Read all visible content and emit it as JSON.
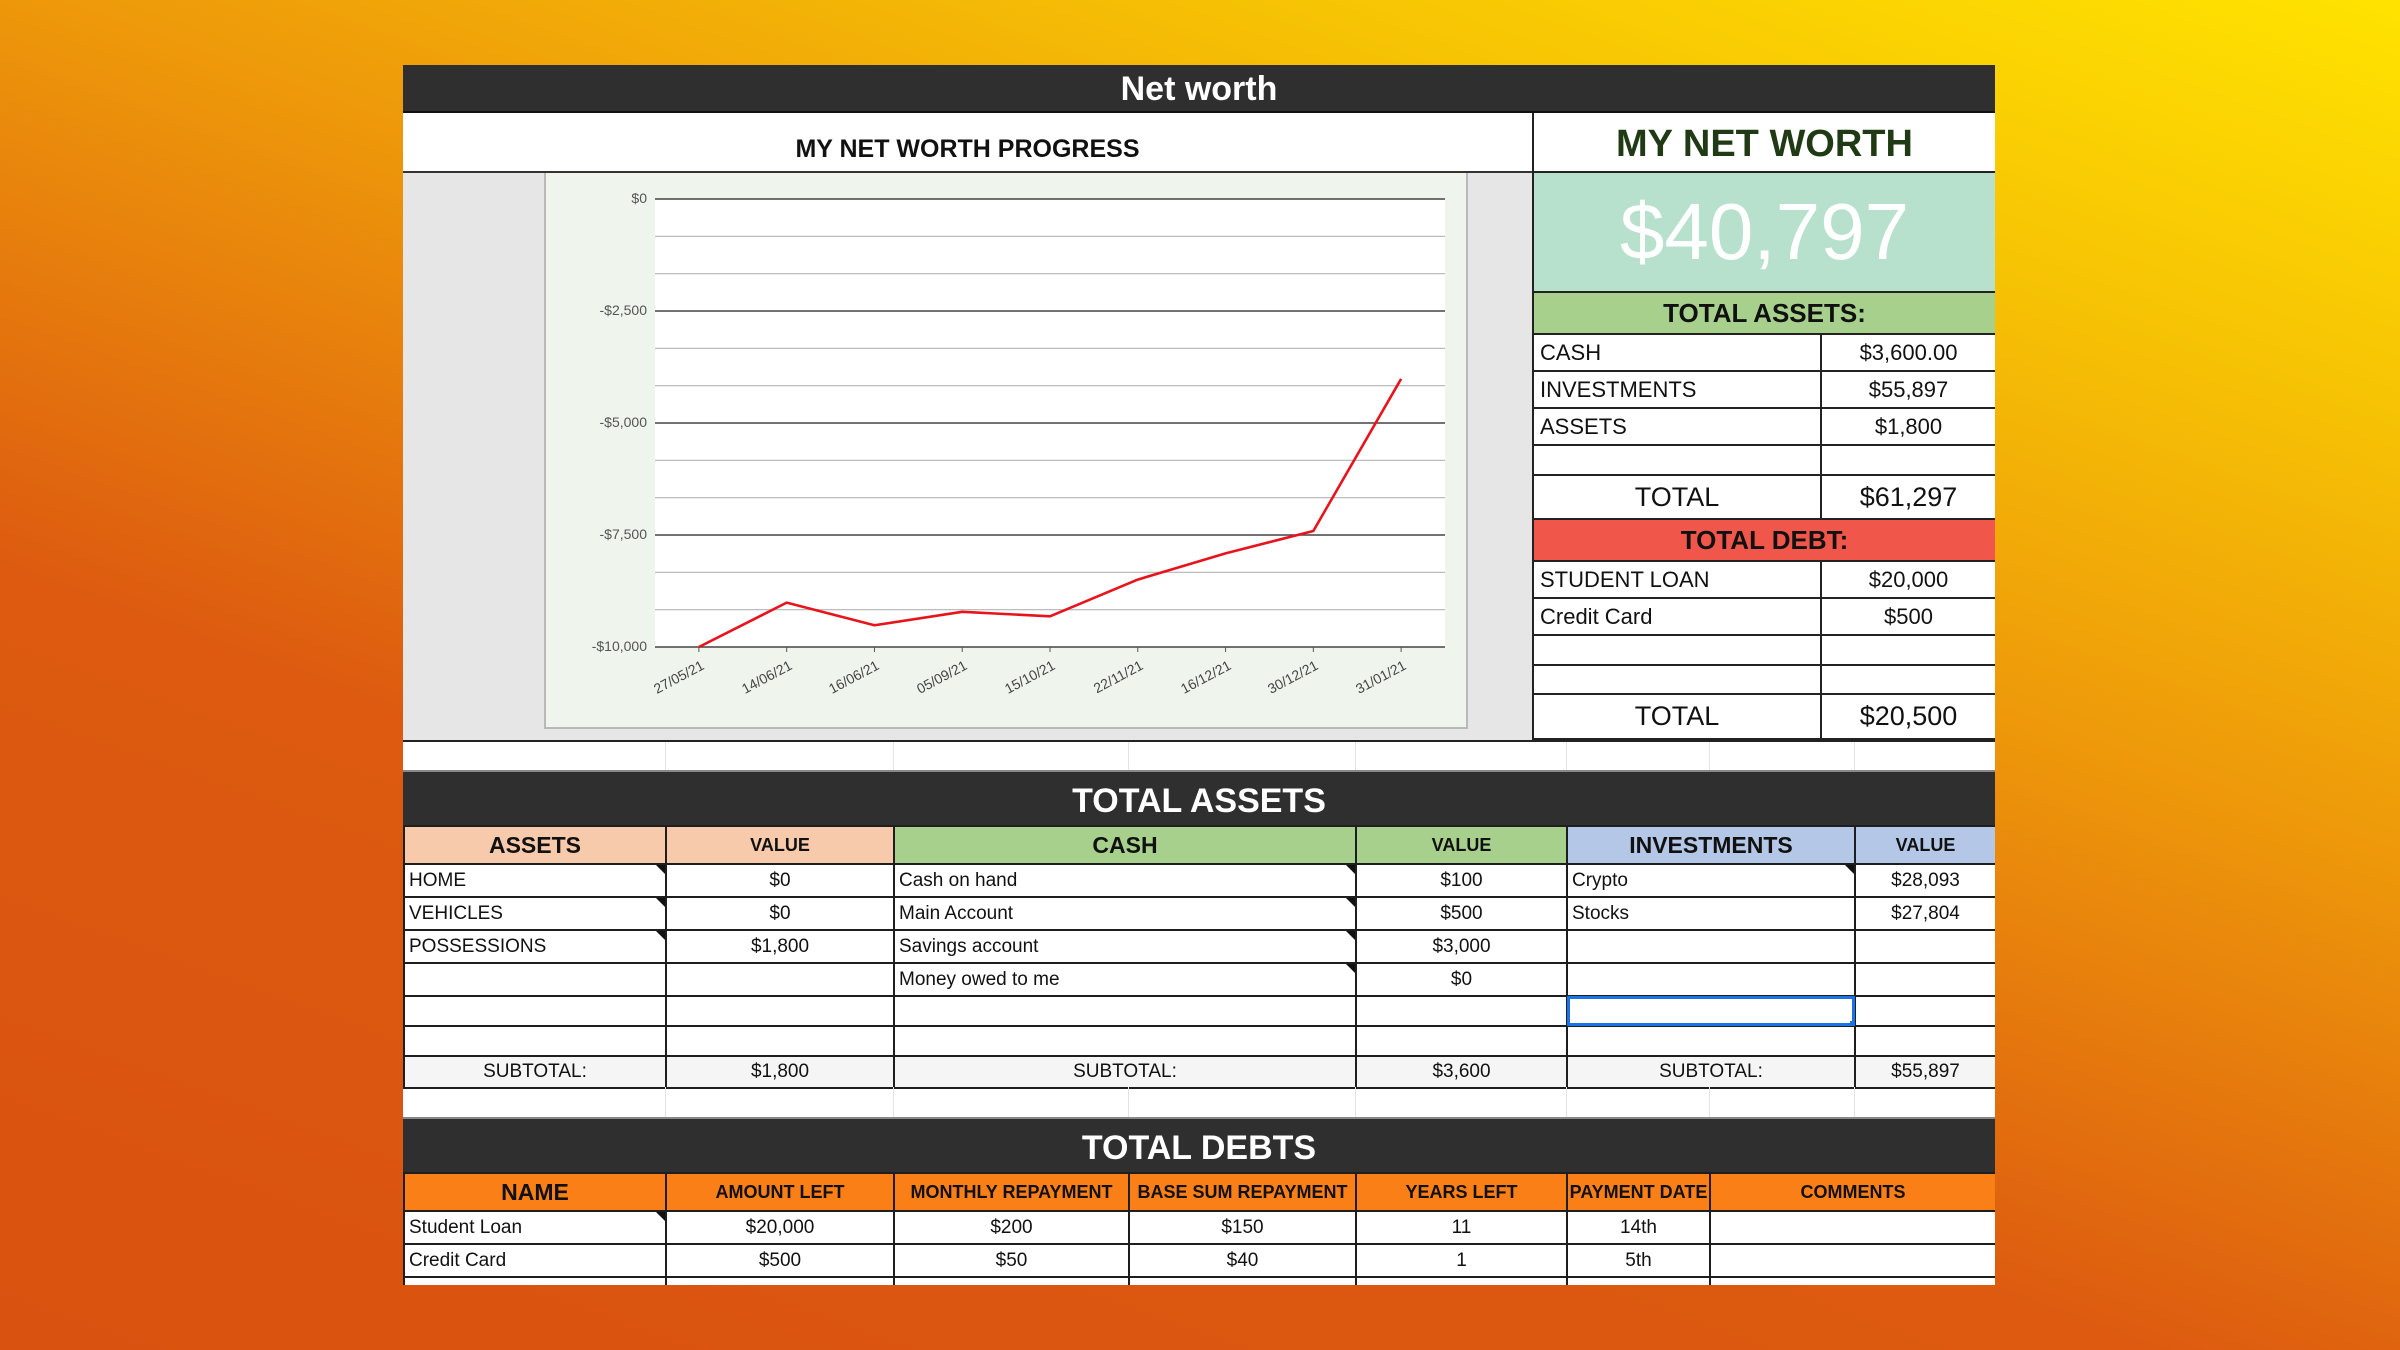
{
  "sheet_title": "Net worth",
  "progress_chart_title": "MY NET WORTH PROGRESS",
  "chart_data": {
    "type": "line",
    "title": "MY NET WORTH PROGRESS",
    "xlabel": "",
    "ylabel": "",
    "x": [
      "27/05/21",
      "14/06/21",
      "16/06/21",
      "05/09/21",
      "15/10/21",
      "22/11/21",
      "16/12/21",
      "30/12/21",
      "31/01/21"
    ],
    "series": [
      {
        "name": "Net worth",
        "color": "#e8141c",
        "values": [
          -10000,
          -9010,
          -9515,
          -9215,
          -9315,
          -8495,
          -7910,
          -7410,
          -4015
        ]
      }
    ],
    "yticks": [
      "$0",
      "-$2,500",
      "-$5,000",
      "-$7,500",
      "-$10,000"
    ],
    "ytick_values": [
      0,
      -2500,
      -5000,
      -7500,
      -10000
    ],
    "ylim": [
      -10000,
      0
    ],
    "grid": true,
    "legend": "none"
  },
  "summary": {
    "title": "MY NET WORTH",
    "net_worth": "$40,797",
    "assets_header": "TOTAL ASSETS:",
    "assets": [
      {
        "label": "CASH",
        "value": "$3,600.00"
      },
      {
        "label": "INVESTMENTS",
        "value": "$55,897"
      },
      {
        "label": "ASSETS",
        "value": "$1,800"
      },
      {
        "label": "",
        "value": ""
      }
    ],
    "assets_total_label": "TOTAL",
    "assets_total": "$61,297",
    "debt_header": "TOTAL DEBT:",
    "debts": [
      {
        "label": "STUDENT LOAN",
        "value": "$20,000"
      },
      {
        "label": "Credit Card",
        "value": "$500"
      },
      {
        "label": "",
        "value": ""
      },
      {
        "label": "",
        "value": ""
      }
    ],
    "debt_total_label": "TOTAL",
    "debt_total": "$20,500"
  },
  "total_assets_section": {
    "title": "TOTAL ASSETS",
    "assets_table": {
      "header": "ASSETS",
      "value_header": "VALUE",
      "rows": [
        {
          "name": "HOME",
          "value": "$0"
        },
        {
          "name": "VEHICLES",
          "value": "$0"
        },
        {
          "name": "POSSESSIONS",
          "value": "$1,800"
        },
        {
          "name": "",
          "value": ""
        },
        {
          "name": "",
          "value": ""
        },
        {
          "name": "",
          "value": ""
        }
      ],
      "subtotal_label": "SUBTOTAL:",
      "subtotal": "$1,800"
    },
    "cash_table": {
      "header": "CASH",
      "value_header": "VALUE",
      "rows": [
        {
          "name": "Cash on hand",
          "value": "$100"
        },
        {
          "name": "Main Account",
          "value": "$500"
        },
        {
          "name": "Savings account",
          "value": "$3,000"
        },
        {
          "name": "Money owed to me",
          "value": "$0"
        },
        {
          "name": "",
          "value": ""
        },
        {
          "name": "",
          "value": ""
        }
      ],
      "subtotal_label": "SUBTOTAL:",
      "subtotal": "$3,600"
    },
    "investments_table": {
      "header": "INVESTMENTS",
      "value_header": "VALUE",
      "rows": [
        {
          "name": "Crypto",
          "value": "$28,093"
        },
        {
          "name": "Stocks",
          "value": "$27,804"
        },
        {
          "name": "",
          "value": ""
        },
        {
          "name": "",
          "value": ""
        },
        {
          "name": "",
          "value": ""
        },
        {
          "name": "",
          "value": ""
        }
      ],
      "subtotal_label": "SUBTOTAL:",
      "subtotal": "$55,897"
    }
  },
  "total_debts_section": {
    "title": "TOTAL DEBTS",
    "columns": [
      "NAME",
      "AMOUNT LEFT",
      "MONTHLY REPAYMENT",
      "BASE SUM REPAYMENT",
      "YEARS LEFT",
      "PAYMENT DATE",
      "COMMENTS"
    ],
    "rows": [
      [
        "Student Loan",
        "$20,000",
        "$200",
        "$150",
        "11",
        "14th",
        ""
      ],
      [
        "Credit Card",
        "$500",
        "$50",
        "$40",
        "1",
        "5th",
        ""
      ]
    ]
  },
  "colors": {
    "header_dark": "#2f2f2f",
    "net_worth_bg": "#b7e1cd",
    "assets_green": "#a8d08d",
    "debt_red": "#f1564a",
    "assets_peach": "#f7caac",
    "investments_blue": "#b4c7e7",
    "debts_orange": "#fa7f17",
    "chart_line": "#e8141c"
  }
}
